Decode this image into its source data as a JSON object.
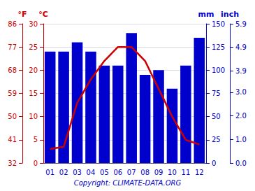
{
  "chart_data": {
    "type": "bar",
    "categories": [
      "01",
      "02",
      "03",
      "04",
      "05",
      "06",
      "07",
      "08",
      "09",
      "10",
      "11",
      "12"
    ],
    "series": [
      {
        "type": "bar",
        "color": "#0000cc",
        "axis": "y2",
        "values": [
          120,
          120,
          130,
          120,
          105,
          105,
          140,
          95,
          100,
          80,
          105,
          135
        ]
      },
      {
        "type": "line",
        "color": "#cc0000",
        "axis": "y",
        "values": [
          3,
          3.5,
          13,
          18,
          22,
          25,
          25,
          22,
          16,
          10,
          5,
          4
        ]
      }
    ],
    "ylabel": "°C",
    "ylim": [
      0,
      30
    ],
    "yticks": [
      0,
      5,
      10,
      15,
      20,
      25,
      30
    ],
    "y2label": "mm",
    "y2lim": [
      0,
      150
    ],
    "y2ticks": [
      0,
      25,
      50,
      75,
      100,
      125,
      150
    ],
    "y3label": "°F",
    "y3lim": [
      32,
      86
    ],
    "y3ticks": [
      32,
      41,
      50,
      59,
      68,
      77,
      86
    ],
    "y4label": "inch",
    "y4lim": [
      0,
      5.9
    ],
    "y4ticks": [
      {
        "value": 0,
        "label": "0.0"
      },
      {
        "value": 1,
        "label": "1.0"
      },
      {
        "value": 2,
        "label": "2.0"
      },
      {
        "value": 3,
        "label": "3.0"
      },
      3.9,
      4.9,
      5.9
    ],
    "grid": true,
    "annotation": "Copyright: CLIMATE-DATA.ORG"
  }
}
